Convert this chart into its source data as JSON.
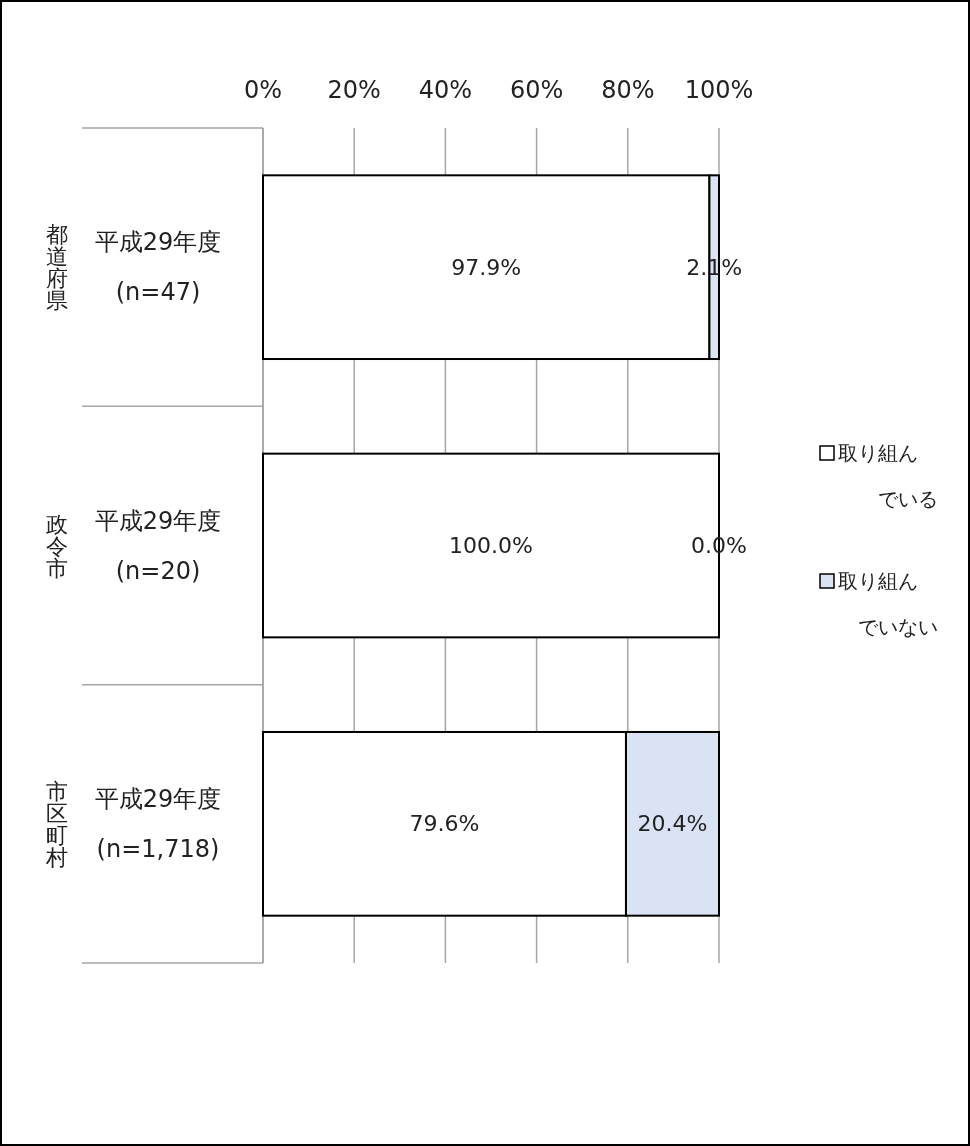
{
  "chart_data": {
    "type": "bar",
    "orientation": "horizontal",
    "stacked": true,
    "categories": [
      "平成29年度\n(n=47)",
      "平成29年度\n(n=20)",
      "平成29年度\n(n=1,718)"
    ],
    "annotations": [
      "都道府県",
      "政令市",
      "市区町村"
    ],
    "series": [
      {
        "name": "取り組んでいる",
        "color": "#ffffff",
        "values": [
          97.9,
          100.0,
          79.6
        ],
        "value_labels": [
          "97.9%",
          "100.0%",
          "79.6%"
        ]
      },
      {
        "name": "取り組んでいない",
        "color": "#dae3f3",
        "values": [
          2.1,
          0.0,
          20.4
        ],
        "value_labels": [
          "2.1%",
          "0.0%",
          "20.4%"
        ]
      }
    ],
    "xlim": [
      0,
      100
    ],
    "xticks": [
      {
        "value": 0,
        "label": "0%"
      },
      {
        "value": 20,
        "label": "20%"
      },
      {
        "value": 40,
        "label": "40%"
      },
      {
        "value": 60,
        "label": "60%"
      },
      {
        "value": 80,
        "label": "80%"
      },
      {
        "value": 100,
        "label": "100%"
      }
    ],
    "grid": "x",
    "legend": "right"
  }
}
